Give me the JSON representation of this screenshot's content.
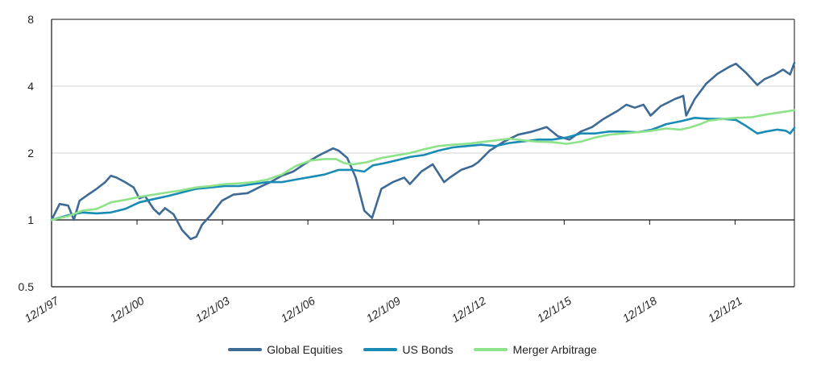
{
  "chart_data": {
    "type": "line",
    "y_scale": "log2",
    "ylim": [
      0.5,
      8
    ],
    "y_ticks": [
      {
        "value": 0.5,
        "label": "0.5"
      },
      {
        "value": 1,
        "label": "1"
      },
      {
        "value": 2,
        "label": "2"
      },
      {
        "value": 4,
        "label": "4"
      },
      {
        "value": 8,
        "label": "8"
      }
    ],
    "x_range": [
      1997.917,
      2024.0
    ],
    "x_ticks": [
      {
        "value": 1997.917,
        "label": "12/1/97"
      },
      {
        "value": 2000.917,
        "label": "12/1/00"
      },
      {
        "value": 2003.917,
        "label": "12/1/03"
      },
      {
        "value": 2006.917,
        "label": "12/1/06"
      },
      {
        "value": 2009.917,
        "label": "12/1/09"
      },
      {
        "value": 2012.917,
        "label": "12/1/12"
      },
      {
        "value": 2015.917,
        "label": "12/1/15"
      },
      {
        "value": 2018.917,
        "label": "12/1/18"
      },
      {
        "value": 2021.917,
        "label": "12/1/21"
      }
    ],
    "grid": true,
    "legend_position": "bottom",
    "series": [
      {
        "name": "Global Equities",
        "color": "#3e6a96",
        "points": [
          [
            1997.917,
            1.0
          ],
          [
            1998.2,
            1.18
          ],
          [
            1998.5,
            1.16
          ],
          [
            1998.7,
            1.0
          ],
          [
            1998.9,
            1.22
          ],
          [
            1999.2,
            1.3
          ],
          [
            1999.5,
            1.38
          ],
          [
            1999.8,
            1.48
          ],
          [
            2000.0,
            1.58
          ],
          [
            2000.2,
            1.55
          ],
          [
            2000.5,
            1.48
          ],
          [
            2000.8,
            1.4
          ],
          [
            2001.0,
            1.25
          ],
          [
            2001.2,
            1.28
          ],
          [
            2001.5,
            1.12
          ],
          [
            2001.7,
            1.06
          ],
          [
            2001.9,
            1.13
          ],
          [
            2002.2,
            1.06
          ],
          [
            2002.5,
            0.9
          ],
          [
            2002.8,
            0.82
          ],
          [
            2003.0,
            0.84
          ],
          [
            2003.2,
            0.95
          ],
          [
            2003.5,
            1.05
          ],
          [
            2003.9,
            1.22
          ],
          [
            2004.3,
            1.3
          ],
          [
            2004.8,
            1.32
          ],
          [
            2005.2,
            1.4
          ],
          [
            2005.6,
            1.48
          ],
          [
            2006.0,
            1.58
          ],
          [
            2006.4,
            1.65
          ],
          [
            2006.9,
            1.82
          ],
          [
            2007.3,
            1.95
          ],
          [
            2007.8,
            2.1
          ],
          [
            2008.0,
            2.05
          ],
          [
            2008.3,
            1.9
          ],
          [
            2008.6,
            1.55
          ],
          [
            2008.9,
            1.1
          ],
          [
            2009.17,
            1.02
          ],
          [
            2009.5,
            1.38
          ],
          [
            2009.9,
            1.48
          ],
          [
            2010.3,
            1.55
          ],
          [
            2010.5,
            1.45
          ],
          [
            2010.9,
            1.65
          ],
          [
            2011.3,
            1.78
          ],
          [
            2011.7,
            1.48
          ],
          [
            2011.9,
            1.55
          ],
          [
            2012.3,
            1.68
          ],
          [
            2012.7,
            1.75
          ],
          [
            2012.9,
            1.82
          ],
          [
            2013.3,
            2.05
          ],
          [
            2013.8,
            2.25
          ],
          [
            2014.3,
            2.42
          ],
          [
            2014.8,
            2.5
          ],
          [
            2015.3,
            2.62
          ],
          [
            2015.7,
            2.38
          ],
          [
            2016.1,
            2.3
          ],
          [
            2016.5,
            2.5
          ],
          [
            2016.9,
            2.62
          ],
          [
            2017.3,
            2.85
          ],
          [
            2017.8,
            3.1
          ],
          [
            2018.1,
            3.3
          ],
          [
            2018.4,
            3.2
          ],
          [
            2018.7,
            3.3
          ],
          [
            2018.95,
            2.95
          ],
          [
            2019.3,
            3.25
          ],
          [
            2019.8,
            3.5
          ],
          [
            2020.1,
            3.62
          ],
          [
            2020.2,
            2.95
          ],
          [
            2020.5,
            3.5
          ],
          [
            2020.9,
            4.1
          ],
          [
            2021.3,
            4.55
          ],
          [
            2021.7,
            4.88
          ],
          [
            2021.95,
            5.05
          ],
          [
            2022.3,
            4.6
          ],
          [
            2022.7,
            4.05
          ],
          [
            2022.95,
            4.3
          ],
          [
            2023.3,
            4.5
          ],
          [
            2023.6,
            4.75
          ],
          [
            2023.85,
            4.52
          ],
          [
            2024.0,
            5.1
          ]
        ]
      },
      {
        "name": "US Bonds",
        "color": "#1a8bb5",
        "points": [
          [
            1997.917,
            1.0
          ],
          [
            1998.5,
            1.05
          ],
          [
            1999.0,
            1.08
          ],
          [
            1999.5,
            1.07
          ],
          [
            2000.0,
            1.08
          ],
          [
            2000.5,
            1.12
          ],
          [
            2001.0,
            1.2
          ],
          [
            2001.5,
            1.24
          ],
          [
            2002.0,
            1.28
          ],
          [
            2002.5,
            1.33
          ],
          [
            2003.0,
            1.38
          ],
          [
            2003.5,
            1.4
          ],
          [
            2004.0,
            1.42
          ],
          [
            2004.5,
            1.42
          ],
          [
            2005.0,
            1.45
          ],
          [
            2005.5,
            1.48
          ],
          [
            2006.0,
            1.48
          ],
          [
            2006.5,
            1.52
          ],
          [
            2007.0,
            1.56
          ],
          [
            2007.5,
            1.6
          ],
          [
            2008.0,
            1.68
          ],
          [
            2008.5,
            1.68
          ],
          [
            2008.9,
            1.65
          ],
          [
            2009.2,
            1.76
          ],
          [
            2009.6,
            1.8
          ],
          [
            2010.0,
            1.85
          ],
          [
            2010.5,
            1.92
          ],
          [
            2011.0,
            1.96
          ],
          [
            2011.5,
            2.05
          ],
          [
            2012.0,
            2.12
          ],
          [
            2012.5,
            2.15
          ],
          [
            2013.0,
            2.18
          ],
          [
            2013.5,
            2.15
          ],
          [
            2014.0,
            2.22
          ],
          [
            2014.5,
            2.26
          ],
          [
            2015.0,
            2.3
          ],
          [
            2015.5,
            2.3
          ],
          [
            2016.0,
            2.35
          ],
          [
            2016.5,
            2.45
          ],
          [
            2017.0,
            2.45
          ],
          [
            2017.5,
            2.5
          ],
          [
            2018.0,
            2.5
          ],
          [
            2018.5,
            2.48
          ],
          [
            2019.0,
            2.55
          ],
          [
            2019.5,
            2.7
          ],
          [
            2020.0,
            2.78
          ],
          [
            2020.5,
            2.88
          ],
          [
            2021.0,
            2.85
          ],
          [
            2021.5,
            2.85
          ],
          [
            2021.95,
            2.82
          ],
          [
            2022.3,
            2.65
          ],
          [
            2022.7,
            2.45
          ],
          [
            2023.0,
            2.5
          ],
          [
            2023.4,
            2.55
          ],
          [
            2023.7,
            2.52
          ],
          [
            2023.85,
            2.45
          ],
          [
            2024.0,
            2.6
          ]
        ]
      },
      {
        "name": "Merger Arbitrage",
        "color": "#8ee28a",
        "points": [
          [
            1997.917,
            1.0
          ],
          [
            1998.5,
            1.04
          ],
          [
            1999.0,
            1.1
          ],
          [
            1999.5,
            1.12
          ],
          [
            2000.0,
            1.2
          ],
          [
            2000.5,
            1.23
          ],
          [
            2001.0,
            1.27
          ],
          [
            2001.5,
            1.3
          ],
          [
            2002.0,
            1.33
          ],
          [
            2002.5,
            1.36
          ],
          [
            2003.0,
            1.4
          ],
          [
            2003.5,
            1.42
          ],
          [
            2004.0,
            1.45
          ],
          [
            2004.5,
            1.46
          ],
          [
            2005.0,
            1.48
          ],
          [
            2005.5,
            1.52
          ],
          [
            2006.0,
            1.6
          ],
          [
            2006.5,
            1.75
          ],
          [
            2007.0,
            1.85
          ],
          [
            2007.5,
            1.88
          ],
          [
            2007.9,
            1.88
          ],
          [
            2008.2,
            1.8
          ],
          [
            2008.5,
            1.78
          ],
          [
            2009.0,
            1.82
          ],
          [
            2009.5,
            1.9
          ],
          [
            2010.0,
            1.95
          ],
          [
            2010.5,
            2.0
          ],
          [
            2011.0,
            2.08
          ],
          [
            2011.5,
            2.15
          ],
          [
            2012.0,
            2.18
          ],
          [
            2012.5,
            2.2
          ],
          [
            2013.0,
            2.24
          ],
          [
            2013.5,
            2.28
          ],
          [
            2014.0,
            2.32
          ],
          [
            2014.5,
            2.28
          ],
          [
            2015.0,
            2.25
          ],
          [
            2015.5,
            2.24
          ],
          [
            2016.0,
            2.2
          ],
          [
            2016.5,
            2.25
          ],
          [
            2017.0,
            2.35
          ],
          [
            2017.5,
            2.42
          ],
          [
            2018.0,
            2.45
          ],
          [
            2018.5,
            2.48
          ],
          [
            2019.0,
            2.52
          ],
          [
            2019.5,
            2.58
          ],
          [
            2020.0,
            2.55
          ],
          [
            2020.3,
            2.6
          ],
          [
            2020.7,
            2.7
          ],
          [
            2021.0,
            2.8
          ],
          [
            2021.5,
            2.85
          ],
          [
            2022.0,
            2.88
          ],
          [
            2022.5,
            2.9
          ],
          [
            2023.0,
            2.98
          ],
          [
            2023.5,
            3.05
          ],
          [
            2024.0,
            3.12
          ]
        ]
      }
    ]
  }
}
